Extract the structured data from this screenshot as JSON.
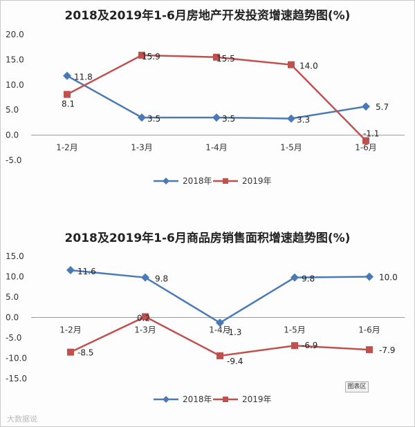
{
  "chart_data": [
    {
      "type": "line",
      "title": "2018及2019年1-6月房地产开发投资增速趋势图(%)",
      "categories": [
        "1-2月",
        "1-3月",
        "1-4月",
        "1-5月",
        "1-6月"
      ],
      "ylim": [
        -5,
        20
      ],
      "yticks": [
        "20.0",
        "15.0",
        "10.0",
        "5.0",
        "0.0",
        "-5.0"
      ],
      "legend_position": "bottom",
      "grid": false,
      "series": [
        {
          "name": "2018年",
          "color": "#4a7ab5",
          "marker": "diamond",
          "values": [
            11.8,
            3.5,
            3.5,
            3.3,
            5.7
          ],
          "labels": [
            "11.8",
            "3.5",
            "3.5",
            "3.3",
            "5.7"
          ]
        },
        {
          "name": "2019年",
          "color": "#c0504d",
          "marker": "square",
          "values": [
            8.1,
            15.9,
            15.5,
            14.0,
            -1.1
          ],
          "labels": [
            "8.1",
            "15.9",
            "15.5",
            "14.0",
            "-1.1"
          ]
        }
      ]
    },
    {
      "type": "line",
      "title": "2018及2019年1-6月商品房销售面积增速趋势图(%)",
      "categories": [
        "1-2月",
        "1-3月",
        "1-4月",
        "1-5月",
        "1-6月"
      ],
      "ylim": [
        -15,
        15
      ],
      "yticks": [
        "15.0",
        "10.0",
        "5.0",
        "0.0",
        "-5.0",
        "-10.0",
        "-15.0"
      ],
      "legend_position": "bottom",
      "grid": false,
      "series": [
        {
          "name": "2018年",
          "color": "#4a7ab5",
          "marker": "diamond",
          "values": [
            11.6,
            9.8,
            -1.3,
            9.8,
            10.0
          ],
          "labels": [
            "11.6",
            "9.8",
            "-1.3",
            "9.8",
            "10.0"
          ]
        },
        {
          "name": "2019年",
          "color": "#c0504d",
          "marker": "square",
          "values": [
            -8.5,
            0.2,
            -9.4,
            -6.9,
            -7.9
          ],
          "labels": [
            "-8.5",
            "0.2",
            "-9.4",
            "-6.9",
            "-7.9"
          ]
        }
      ]
    }
  ],
  "chip_text": "图表区",
  "watermark": "大数据说"
}
